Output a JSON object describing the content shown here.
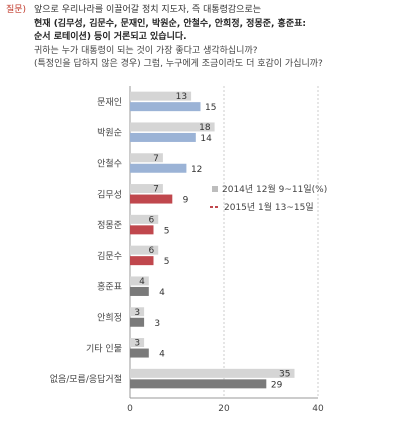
{
  "question": {
    "label": "질문)",
    "lines": [
      "앞으로 우리나라를 이끌어갈 정치 지도자, 즉 대통령감으로는",
      "현재 (김무성, 김문수, 문재인, 박원순, 안철수, 안희정, 정몽준, 홍준표:",
      "순서 로테이션) 등이 거론되고 있습니다.",
      "귀하는 누가 대통령이 되는 것이 가장 좋다고 생각하십니까?",
      "(특정인을 답하지 않은 경우) 그럼, 누구에게 조금이라도 더 호감이 가십니까?"
    ]
  },
  "colors": {
    "series1": "#d5d5d5",
    "series1_legend": "#bdbdbd",
    "series2_a": "#9bb3d6",
    "series2_b": "#c0474d",
    "series2_c": "#7a7a7a",
    "legend2": "#c0474d",
    "axis": "#999999",
    "grid": "#cccccc",
    "label": "#444444"
  },
  "chart_data": {
    "type": "bar",
    "orientation": "horizontal",
    "categories": [
      "문재인",
      "박원순",
      "안철수",
      "김무성",
      "정몽준",
      "김문수",
      "홍준표",
      "안희정",
      "기타 인물",
      "없음/모름/응답거절"
    ],
    "series": [
      {
        "name": "2014년 12월 9~11일(%)",
        "values": [
          13,
          18,
          7,
          7,
          6,
          6,
          4,
          3,
          3,
          35
        ]
      },
      {
        "name": "2015년 1월 13~15일",
        "values": [
          15,
          14,
          12,
          9,
          5,
          5,
          4,
          3,
          4,
          29
        ]
      }
    ],
    "value_labels": [
      [
        "13",
        "18",
        "7",
        "7",
        "6",
        "6",
        "4",
        "3",
        "3",
        "35"
      ],
      [
        "15",
        "14",
        "12",
        "9",
        "5",
        "5",
        "4",
        "3",
        "4",
        "29"
      ]
    ],
    "series2_color_keys": [
      "series2_a",
      "series2_a",
      "series2_a",
      "series2_b",
      "series2_b",
      "series2_b",
      "series2_c",
      "series2_c",
      "series2_c",
      "series2_c"
    ],
    "xticks": [
      "0",
      "20",
      "40"
    ],
    "xlim": [
      0,
      40
    ],
    "xlabel": "",
    "ylabel": "",
    "legend_position": "right"
  }
}
